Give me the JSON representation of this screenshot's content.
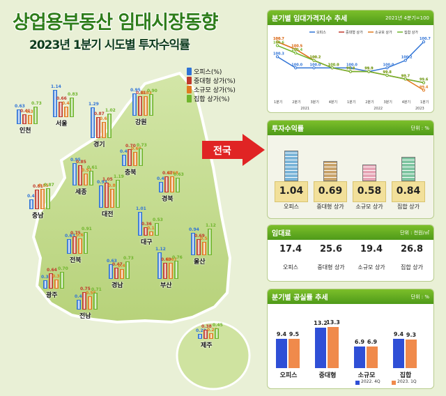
{
  "title": "상업용부동산 임대시장동향",
  "subtitle": "2023년 1분기 시도별 투자수익률",
  "legend": [
    "오피스(%)",
    "중대형 상가(%)",
    "소규모 상가(%)",
    "집합 상가(%)"
  ],
  "colors": {
    "office": "#2f73d6",
    "midlarge": "#c0392b",
    "small": "#e07a1f",
    "collective": "#6fb52c",
    "header": "#5aa81e"
  },
  "arrow_label": "전국",
  "chart_data": [
    {
      "type": "bar",
      "categories": [
        "인천",
        "서울",
        "강원",
        "경기",
        "충북",
        "세종",
        "경북",
        "충남",
        "대전",
        "대구",
        "전북",
        "울산",
        "광주",
        "경남",
        "부산",
        "전남",
        "제주"
      ],
      "series": [
        {
          "name": "오피스(%)",
          "values": [
            0.63,
            1.14,
            0.95,
            1.29,
            0.48,
            0.95,
            0.43,
            0.42,
            0.93,
            1.01,
            0.63,
            0.94,
            0.34,
            0.63,
            1.12,
            0.42,
            0.22
          ]
        },
        {
          "name": "중대형 상가(%)",
          "values": [
            0.41,
            0.66,
            0.81,
            0.87,
            0.7,
            0.85,
            0.67,
            0.81,
            1.05,
            0.36,
            0.75,
            0.69,
            0.64,
            0.47,
            0.69,
            0.75,
            0.38
          ]
        },
        {
          "name": "소규모 상가(%)",
          "values": [
            0.38,
            0.44,
            0.83,
            0.69,
            0.6,
            0.51,
            0.68,
            0.85,
            0.8,
            0.17,
            0.64,
            0.57,
            0.39,
            0.41,
            0.67,
            0.55,
            0.25
          ]
        },
        {
          "name": "집합 상가(%)",
          "values": [
            0.73,
            0.83,
            0.9,
            1.02,
            0.73,
            0.61,
            0.63,
            0.87,
            1.19,
            0.53,
            0.91,
            1.12,
            0.7,
            0.73,
            0.76,
            0.71,
            0.45
          ]
        }
      ]
    },
    {
      "type": "line",
      "title": "분기별 임대가격지수 추세",
      "note": "2021년 4분기=100",
      "x": [
        "1분기",
        "2분기",
        "3분기",
        "4분기",
        "1분기",
        "2분기",
        "3분기",
        "4분기",
        "1분기"
      ],
      "years": [
        "2021",
        "2022",
        "2023"
      ],
      "series": [
        {
          "name": "오피스",
          "values": [
            100.3,
            100.0,
            100.0,
            100.0,
            100.0,
            99.9,
            100.0,
            100.2,
            100.7
          ]
        },
        {
          "name": "중대형 상가",
          "values": [
            100.7,
            100.5,
            100.2,
            100.0,
            99.9,
            99.9,
            99.8,
            99.7,
            99.6
          ]
        },
        {
          "name": "소규모 상가",
          "values": [
            100.7,
            100.5,
            100.2,
            100.0,
            99.9,
            99.9,
            99.8,
            99.7,
            99.4
          ]
        },
        {
          "name": "집합 상가",
          "values": [
            100.6,
            100.4,
            100.2,
            100.0,
            99.9,
            99.9,
            99.8,
            99.7,
            99.6
          ]
        }
      ],
      "ylim": [
        99.2,
        101.0
      ]
    },
    {
      "type": "bar",
      "title": "투자수익률",
      "unit": "단위 : %",
      "categories": [
        "오피스",
        "중대형 상가",
        "소규모 상가",
        "집합 상가"
      ],
      "values": [
        1.04,
        0.69,
        0.58,
        0.84
      ]
    },
    {
      "type": "table",
      "title": "임대료",
      "unit": "단위 : 천원/㎡",
      "categories": [
        "오피스",
        "중대형 상가",
        "소규모 상가",
        "집합 상가"
      ],
      "values": [
        17.4,
        25.6,
        19.4,
        26.8
      ]
    },
    {
      "type": "bar",
      "title": "분기별 공실률 추세",
      "unit": "단위 : %",
      "categories": [
        "오피스",
        "중대형",
        "소규모",
        "집합"
      ],
      "series": [
        {
          "name": "2022. 4Q",
          "values": [
            9.4,
            13.2,
            6.9,
            9.4
          ]
        },
        {
          "name": "2023. 1Q",
          "values": [
            9.5,
            13.3,
            6.9,
            9.3
          ]
        }
      ],
      "ylim": [
        0,
        14
      ]
    }
  ]
}
